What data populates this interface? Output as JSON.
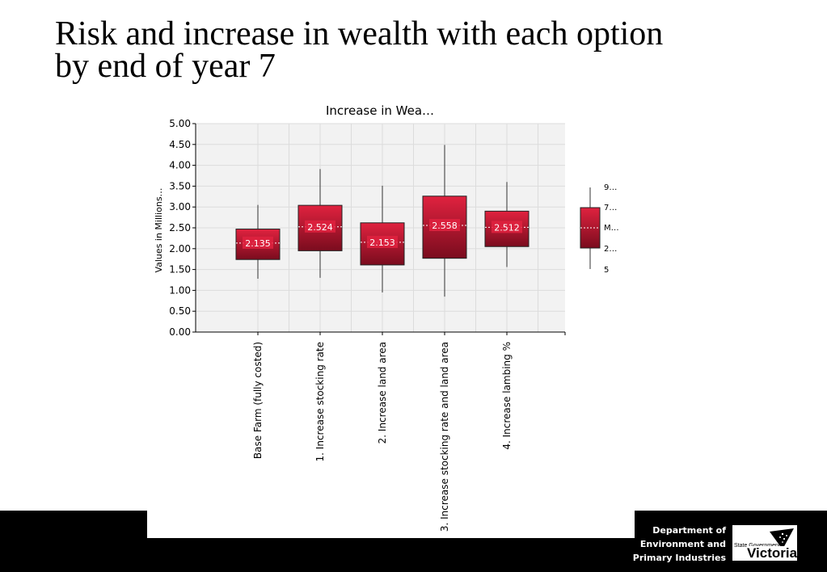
{
  "slide": {
    "title_line1": "Risk and increase in wealth with each option",
    "title_line2": "by end of year 7"
  },
  "footer": {
    "dept_line1": "Department of",
    "dept_line2": "Environment and",
    "dept_line3": "Primary Industries",
    "logo_small": "State Government",
    "logo_word": "Victoria"
  },
  "colors": {
    "box_light": "#e0223f",
    "box_dark": "#7a0c1e",
    "plot_bg": "#f2f2f2",
    "grid": "#dcdcdc"
  },
  "chart_data": {
    "type": "boxplot",
    "title": "Increase in Wea…",
    "ylabel": "Values in Millions…",
    "ylim": [
      0,
      5
    ],
    "yticks": [
      "0.00",
      "0.50",
      "1.00",
      "1.50",
      "2.00",
      "2.50",
      "3.00",
      "3.50",
      "4.00",
      "4.50",
      "5.00"
    ],
    "grid": true,
    "categories": [
      "Base Farm (fully costed)",
      "1. Increase stocking rate",
      "2. Increase land area",
      "3. Increase stocking rate and land area",
      "4. Increase lambing %"
    ],
    "series": [
      {
        "whisker_low": 1.28,
        "q1": 1.74,
        "mean": 2.135,
        "q3": 2.47,
        "whisker_high": 3.05,
        "label": "2.135"
      },
      {
        "whisker_low": 1.3,
        "q1": 1.95,
        "mean": 2.524,
        "q3": 3.04,
        "whisker_high": 3.91,
        "label": "2.524"
      },
      {
        "whisker_low": 0.95,
        "q1": 1.61,
        "mean": 2.153,
        "q3": 2.62,
        "whisker_high": 3.51,
        "label": "2.153"
      },
      {
        "whisker_low": 0.85,
        "q1": 1.77,
        "mean": 2.558,
        "q3": 3.26,
        "whisker_high": 4.49,
        "label": "2.558"
      },
      {
        "whisker_low": 1.56,
        "q1": 2.05,
        "mean": 2.512,
        "q3": 2.9,
        "whisker_high": 3.6,
        "label": "2.512"
      }
    ],
    "legend": {
      "placement": "right",
      "labels": [
        "9…",
        "7…",
        "M…",
        "2…",
        "5"
      ]
    }
  }
}
